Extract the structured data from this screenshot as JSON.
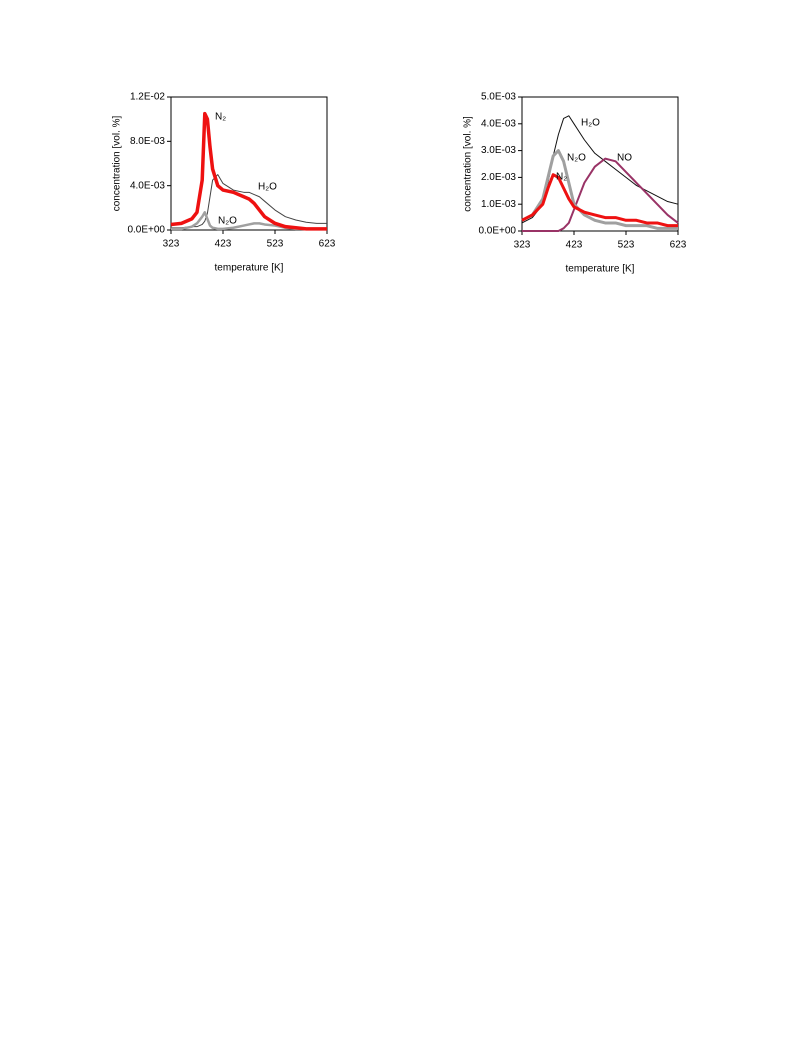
{
  "chart_data": [
    {
      "type": "line",
      "x_label": "temperature [K]",
      "y_label": "concentration [vol. %]",
      "x": [
        323,
        343,
        363,
        373,
        383,
        388,
        393,
        398,
        403,
        413,
        423,
        443,
        463,
        473,
        483,
        493,
        503,
        523,
        543,
        563,
        583,
        603,
        623
      ],
      "xlim": [
        323,
        623
      ],
      "xticks": [
        323,
        423,
        523,
        623
      ],
      "ylim": [
        0,
        0.012
      ],
      "yticks": [
        {
          "value": 0,
          "label": "0.0E+00"
        },
        {
          "value": 0.004,
          "label": "4.0E-03"
        },
        {
          "value": 0.008,
          "label": "8.0E-03"
        },
        {
          "value": 0.012,
          "label": "1.2E-02"
        }
      ],
      "series": [
        {
          "name": "H₂O",
          "color": "#444444",
          "values": [
            0.0002,
            0.0002,
            0.0003,
            0.0003,
            0.0005,
            0.0008,
            0.0015,
            0.003,
            0.0045,
            0.005,
            0.0042,
            0.0036,
            0.0034,
            0.0034,
            0.0032,
            0.003,
            0.0026,
            0.0018,
            0.0012,
            0.0009,
            0.0007,
            0.0006,
            0.0006
          ]
        },
        {
          "name": "N₂O",
          "color": "#a0a0a0",
          "values": [
            0.0001,
            0.0001,
            0.0003,
            0.0006,
            0.0012,
            0.0016,
            0.001,
            0.0004,
            0.0002,
            0.0001,
            0.0001,
            0.0002,
            0.0004,
            0.0005,
            0.0006,
            0.0006,
            0.0005,
            0.0004,
            0.0002,
            0.0001,
            0.0001,
            0.0001,
            0.0001
          ]
        },
        {
          "name": "N₂",
          "color": "#ee1111",
          "values": [
            0.0005,
            0.0006,
            0.001,
            0.0016,
            0.0045,
            0.0105,
            0.01,
            0.0075,
            0.0055,
            0.004,
            0.0036,
            0.0034,
            0.003,
            0.0028,
            0.0024,
            0.0018,
            0.0012,
            0.0006,
            0.0003,
            0.0002,
            0.0001,
            0.0001,
            0.0001
          ]
        }
      ]
    },
    {
      "type": "line",
      "x_label": "temperature [K]",
      "y_label": "concentration [vol. %]",
      "x": [
        323,
        343,
        363,
        373,
        383,
        393,
        403,
        413,
        423,
        443,
        463,
        483,
        503,
        523,
        543,
        563,
        583,
        603,
        623
      ],
      "xlim": [
        323,
        623
      ],
      "xticks": [
        323,
        423,
        523,
        623
      ],
      "ylim": [
        0,
        0.005
      ],
      "yticks": [
        {
          "value": 0,
          "label": "0.0E+00"
        },
        {
          "value": 0.001,
          "label": "1.0E-03"
        },
        {
          "value": 0.002,
          "label": "2.0E-03"
        },
        {
          "value": 0.003,
          "label": "3.0E-03"
        },
        {
          "value": 0.004,
          "label": "4.0E-03"
        },
        {
          "value": 0.005,
          "label": "5.0E-03"
        }
      ],
      "series": [
        {
          "name": "H₂O",
          "color": "#111111",
          "values": [
            0.0003,
            0.0005,
            0.001,
            0.0018,
            0.0028,
            0.0036,
            0.0042,
            0.0043,
            0.004,
            0.0034,
            0.0029,
            0.0026,
            0.0023,
            0.002,
            0.0017,
            0.0015,
            0.0013,
            0.0011,
            0.001
          ]
        },
        {
          "name": "NO",
          "color": "#993366",
          "values": [
            0,
            0,
            0,
            0,
            0,
            0,
            0.0001,
            0.0003,
            0.0008,
            0.0018,
            0.0024,
            0.0027,
            0.0026,
            0.0022,
            0.0018,
            0.0014,
            0.001,
            0.0006,
            0.0003
          ]
        },
        {
          "name": "N₂O",
          "color": "#a0a0a0",
          "values": [
            0.0004,
            0.0006,
            0.0012,
            0.002,
            0.0028,
            0.003,
            0.0026,
            0.0018,
            0.001,
            0.0006,
            0.0004,
            0.0003,
            0.0003,
            0.0002,
            0.0002,
            0.0002,
            0.0001,
            0.0001,
            0.0001
          ]
        },
        {
          "name": "N₂",
          "color": "#ee1111",
          "values": [
            0.0004,
            0.0006,
            0.001,
            0.0016,
            0.0021,
            0.002,
            0.0016,
            0.0012,
            0.0009,
            0.0007,
            0.0006,
            0.0005,
            0.0005,
            0.0004,
            0.0004,
            0.0003,
            0.0003,
            0.0002,
            0.0002
          ]
        }
      ]
    }
  ]
}
